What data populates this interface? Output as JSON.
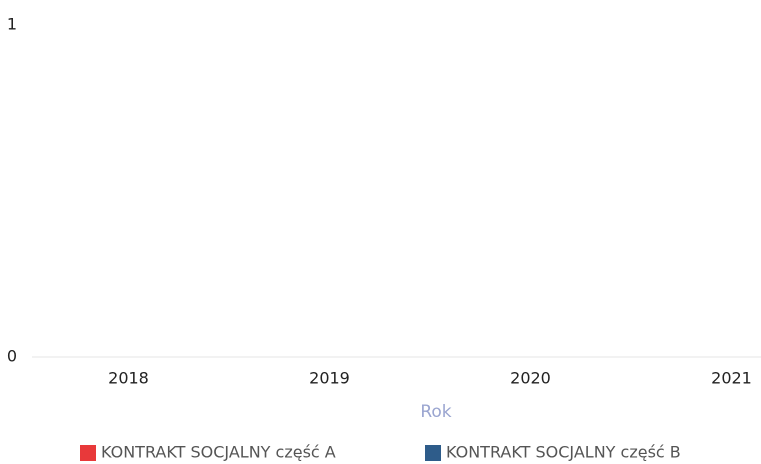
{
  "chart_data": {
    "type": "bar",
    "categories": [
      "2018",
      "2019",
      "2020",
      "2021"
    ],
    "series": [
      {
        "name": "KONTRAKT SOCJALNY część A",
        "color": "#e8393a",
        "values": [
          0,
          0,
          0,
          0
        ]
      },
      {
        "name": "KONTRAKT SOCJALNY część B",
        "color": "#2e5c8a",
        "values": [
          0,
          0,
          0,
          0
        ]
      }
    ],
    "xlabel": "Rok",
    "ylim": [
      0,
      1
    ],
    "yticks": [
      0,
      1
    ],
    "grid": true,
    "legend": "bottom"
  }
}
